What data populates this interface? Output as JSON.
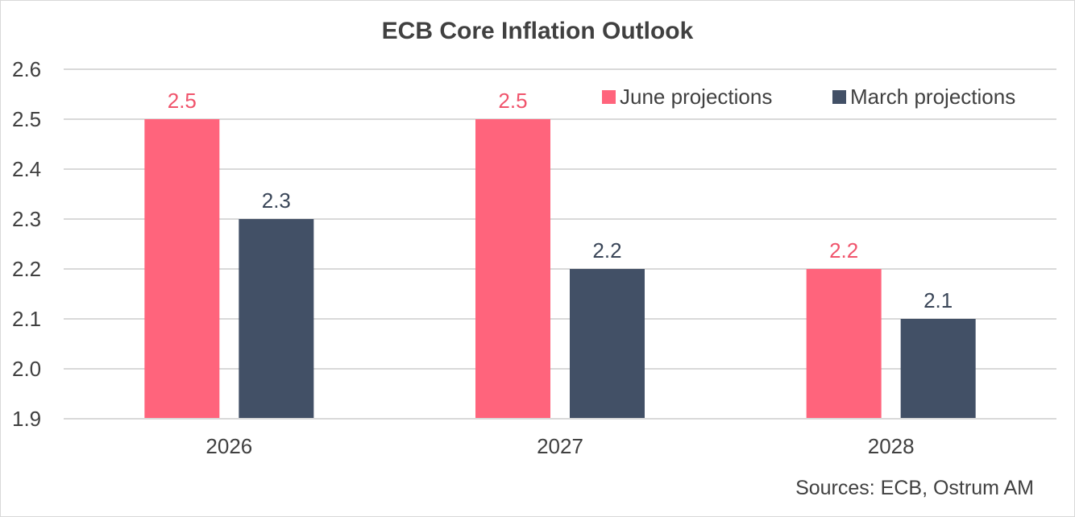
{
  "chart_data": {
    "type": "bar",
    "title": "ECB Core Inflation Outlook",
    "categories": [
      "2026",
      "2027",
      "2028"
    ],
    "series": [
      {
        "name": "June projections",
        "values": [
          2.5,
          2.5,
          2.2
        ],
        "labels": [
          "2.5",
          "2.5",
          "2.2"
        ],
        "color": "#ff647c",
        "label_color": "#f0546c"
      },
      {
        "name": "March projections",
        "values": [
          2.3,
          2.2,
          2.1
        ],
        "labels": [
          "2.3",
          "2.2",
          "2.1"
        ],
        "color": "#425066",
        "label_color": "#3a4658"
      }
    ],
    "ylim": [
      1.9,
      2.6
    ],
    "yticks": [
      1.9,
      2.0,
      2.1,
      2.2,
      2.3,
      2.4,
      2.5,
      2.6
    ],
    "ytick_labels": [
      "1.9",
      "2.0",
      "2.1",
      "2.2",
      "2.3",
      "2.4",
      "2.5",
      "2.6"
    ],
    "grid": true,
    "legend_position": "top-right",
    "source": "Sources: ECB, Ostrum AM"
  }
}
